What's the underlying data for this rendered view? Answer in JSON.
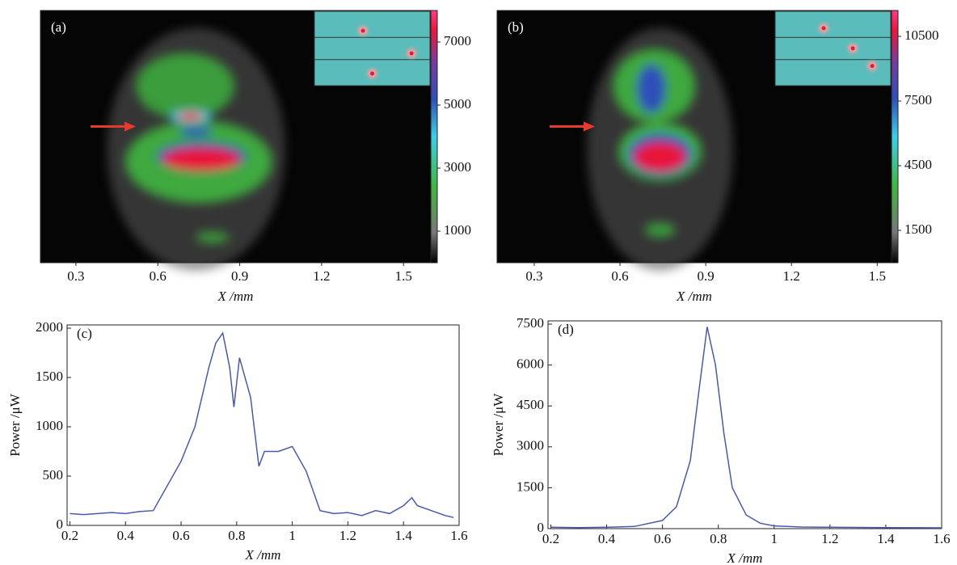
{
  "chart_data": [
    {
      "type": "heatmap",
      "label": "(a)",
      "xlim": [
        0.17,
        1.6
      ],
      "xticks": [
        0.3,
        0.6,
        0.9,
        1.2,
        1.5
      ],
      "xlabel": "X /mm",
      "zlim": [
        0,
        8000
      ],
      "zticks": [
        1000,
        3000,
        5000,
        7000
      ]
    },
    {
      "type": "heatmap",
      "label": "(b)",
      "xlim": [
        0.17,
        1.55
      ],
      "xticks": [
        0.3,
        0.6,
        0.9,
        1.2,
        1.5
      ],
      "xlabel": "X /mm",
      "zlim": [
        0,
        11700
      ],
      "zticks": [
        1500,
        4500,
        7500,
        10500
      ]
    },
    {
      "type": "line",
      "label": "(c)",
      "color": "#4a5aa8",
      "xlabel": "X /mm",
      "ylabel": "Power /μW",
      "x": [
        0.2,
        0.25,
        0.3,
        0.35,
        0.4,
        0.45,
        0.5,
        0.55,
        0.6,
        0.65,
        0.7,
        0.725,
        0.75,
        0.775,
        0.79,
        0.81,
        0.85,
        0.88,
        0.9,
        0.95,
        1.0,
        1.05,
        1.1,
        1.15,
        1.2,
        1.25,
        1.3,
        1.35,
        1.4,
        1.43,
        1.45,
        1.5,
        1.55,
        1.58
      ],
      "values": [
        120,
        110,
        120,
        130,
        120,
        140,
        150,
        400,
        650,
        1000,
        1600,
        1850,
        1950,
        1600,
        1200,
        1700,
        1300,
        600,
        750,
        750,
        800,
        550,
        150,
        120,
        130,
        100,
        150,
        120,
        200,
        280,
        200,
        150,
        100,
        80
      ],
      "xlim": [
        0.19,
        1.6
      ],
      "xticks": [
        0.2,
        0.4,
        0.6,
        0.8,
        1.0,
        1.2,
        1.4,
        1.6
      ],
      "ylim": [
        0,
        2000
      ],
      "yticks": [
        0,
        500,
        1000,
        1500,
        2000
      ]
    },
    {
      "type": "line",
      "label": "(d)",
      "color": "#4a5aa8",
      "xlabel": "X /mm",
      "ylabel": "Power /μW",
      "x": [
        0.2,
        0.3,
        0.4,
        0.5,
        0.6,
        0.65,
        0.7,
        0.73,
        0.76,
        0.79,
        0.82,
        0.85,
        0.9,
        0.95,
        1.0,
        1.1,
        1.2,
        1.4,
        1.6
      ],
      "values": [
        50,
        40,
        50,
        80,
        300,
        800,
        2500,
        5000,
        7400,
        6000,
        3500,
        1500,
        500,
        200,
        100,
        60,
        50,
        40,
        30
      ],
      "xlim": [
        0.19,
        1.6
      ],
      "xticks": [
        0.2,
        0.4,
        0.6,
        0.8,
        1.0,
        1.2,
        1.4,
        1.6
      ],
      "ylim": [
        0,
        7500
      ],
      "yticks": [
        0,
        1500,
        3000,
        4500,
        6000,
        7500
      ]
    }
  ]
}
